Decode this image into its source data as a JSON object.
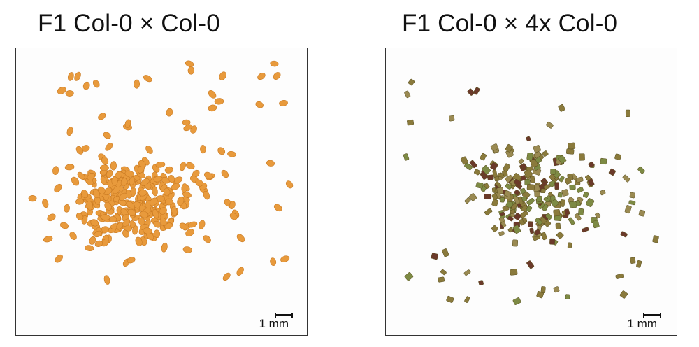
{
  "panels": [
    {
      "title": "F1 Col-0 × Col-0",
      "scale_label": "1 mm",
      "image_description_colors": {
        "seed": "#e89a3c",
        "seed_edge": "#c97a22"
      }
    },
    {
      "title": "F1 Col-0 × 4x Col-0",
      "scale_label": "1 mm",
      "image_description_colors": {
        "seed": "#8a7a3c",
        "seed_dark": "#6b3a2a",
        "seed_edge": "#5a5020"
      }
    }
  ]
}
